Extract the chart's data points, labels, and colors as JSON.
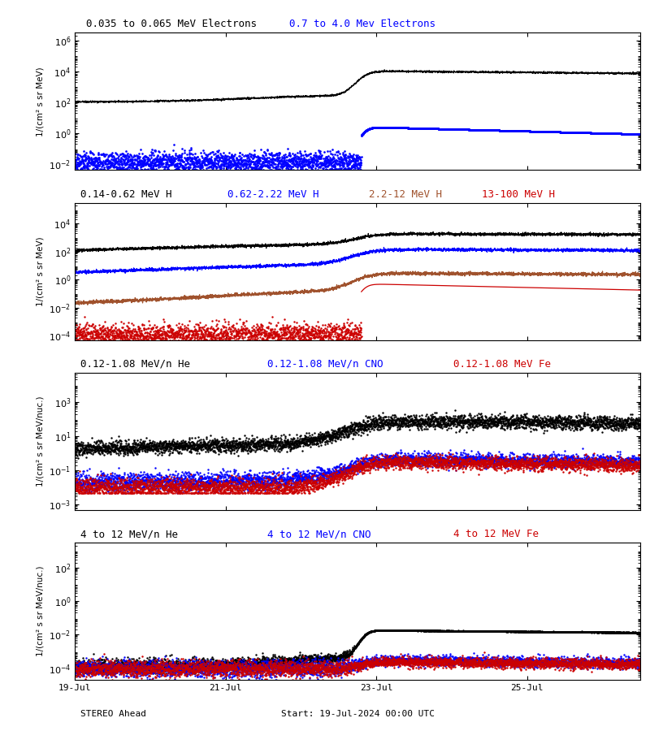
{
  "start_day": 19,
  "end_day": 26.5,
  "event_day": 22.85,
  "background_color": "#ffffff",
  "panel1": {
    "title1": "0.035 to 0.065 MeV Electrons",
    "title1_color": "#000000",
    "title2": "0.7 to 4.0 Mev Electrons",
    "title2_color": "#0000ff",
    "ylabel": "1/(cm² s sr MeV)",
    "ylim": [
      0.004,
      3000000.0
    ],
    "yticks": [
      0.01,
      1.0,
      100.0,
      10000.0,
      1000000.0
    ]
  },
  "panel2": {
    "title1": "0.14-0.62 MeV H",
    "title1_color": "#000000",
    "title2": "0.62-2.22 MeV H",
    "title2_color": "#0000ff",
    "title3": "2.2-12 MeV H",
    "title3_color": "#a0522d",
    "title4": "13-100 MeV H",
    "title4_color": "#cc0000",
    "ylabel": "1/(cm² s sr MeV)",
    "ylim": [
      5e-05,
      300000.0
    ],
    "yticks": [
      0.0001,
      0.01,
      1.0,
      100.0,
      10000.0
    ]
  },
  "panel3": {
    "title1": "0.12-1.08 MeV/n He",
    "title1_color": "#000000",
    "title2": "0.12-1.08 MeV/n CNO",
    "title2_color": "#0000ff",
    "title3": "0.12-1.08 MeV Fe",
    "title3_color": "#cc0000",
    "ylabel": "1/(cm² s sr MeV/nuc.)",
    "ylim": [
      0.0005,
      50000.0
    ],
    "yticks": [
      0.001,
      0.1,
      10.0,
      1000.0
    ]
  },
  "panel4": {
    "title1": "4 to 12 MeV/n He",
    "title1_color": "#000000",
    "title2": "4 to 12 MeV/n CNO",
    "title2_color": "#0000ff",
    "title3": "4 to 12 MeV Fe",
    "title3_color": "#cc0000",
    "ylabel": "1/(cm² s sr MeV/nuc.)",
    "ylim": [
      2e-05,
      3000.0
    ],
    "yticks": [
      0.0001,
      0.01,
      1.0,
      100.0
    ]
  },
  "xlabel_left": "STEREO Ahead",
  "xlabel_center": "Start: 19-Jul-2024 00:00 UTC",
  "xtick_labels": [
    "19-Jul",
    "21-Jul",
    "23-Jul",
    "25-Jul"
  ],
  "xtick_positions": [
    19,
    21,
    23,
    25
  ]
}
